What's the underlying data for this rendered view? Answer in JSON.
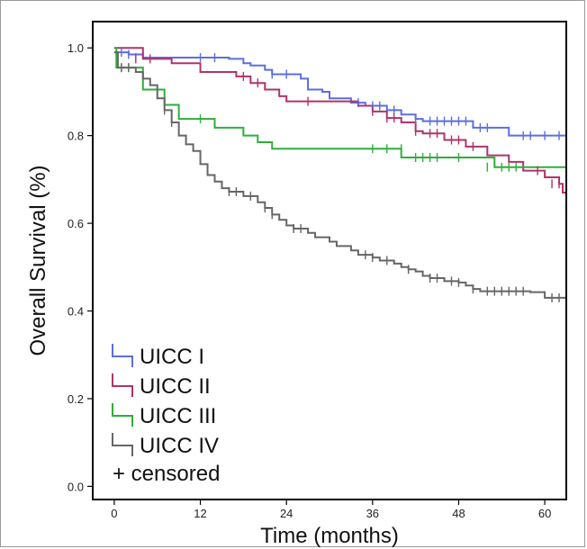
{
  "chart_data": {
    "type": "line",
    "subtype": "kaplan-meier",
    "title": "",
    "xlabel": "Time (months)",
    "ylabel": "Overall Survival (%)",
    "xlim": [
      -3,
      63
    ],
    "ylim": [
      -0.03,
      1.06
    ],
    "xticks": [
      0,
      12,
      24,
      36,
      48,
      60
    ],
    "yticks": [
      0.0,
      0.2,
      0.4,
      0.6,
      0.8,
      1.0
    ],
    "xtick_labels": [
      "0",
      "12",
      "24",
      "36",
      "48",
      "60"
    ],
    "ytick_labels": [
      "0.0",
      "0.2",
      "0.4",
      "0.6",
      "0.8",
      "1.0"
    ],
    "grid": false,
    "legend_position": "bottom-left",
    "censored_label": "+ censored",
    "series": [
      {
        "name": "UICC I",
        "color": "#5b6ee1",
        "steps": [
          [
            0,
            0.99
          ],
          [
            2,
            0.985
          ],
          [
            4,
            0.978
          ],
          [
            13,
            0.978
          ],
          [
            16,
            0.975
          ],
          [
            18,
            0.965
          ],
          [
            19,
            0.96
          ],
          [
            21,
            0.95
          ],
          [
            22,
            0.94
          ],
          [
            26,
            0.93
          ],
          [
            27,
            0.905
          ],
          [
            29,
            0.9
          ],
          [
            30,
            0.885
          ],
          [
            33,
            0.875
          ],
          [
            35,
            0.868
          ],
          [
            38,
            0.858
          ],
          [
            40,
            0.848
          ],
          [
            42,
            0.838
          ],
          [
            43,
            0.833
          ],
          [
            50,
            0.818
          ],
          [
            55,
            0.8
          ],
          [
            63,
            0.8
          ]
        ],
        "censored": [
          [
            1,
            0.99
          ],
          [
            2,
            0.985
          ],
          [
            3,
            0.978
          ],
          [
            12,
            0.978
          ],
          [
            14,
            0.978
          ],
          [
            22,
            0.94
          ],
          [
            24,
            0.94
          ],
          [
            34,
            0.875
          ],
          [
            36,
            0.868
          ],
          [
            37,
            0.868
          ],
          [
            39,
            0.858
          ],
          [
            42,
            0.838
          ],
          [
            44,
            0.833
          ],
          [
            45,
            0.833
          ],
          [
            46,
            0.833
          ],
          [
            47,
            0.833
          ],
          [
            48,
            0.833
          ],
          [
            49,
            0.833
          ],
          [
            51,
            0.818
          ],
          [
            52,
            0.818
          ],
          [
            57,
            0.8
          ],
          [
            58,
            0.8
          ],
          [
            60,
            0.8
          ],
          [
            62,
            0.8
          ]
        ]
      },
      {
        "name": "UICC II",
        "color": "#b0336b",
        "steps": [
          [
            0,
            1.0
          ],
          [
            4,
            0.975
          ],
          [
            6,
            0.975
          ],
          [
            8,
            0.965
          ],
          [
            12,
            0.945
          ],
          [
            17,
            0.935
          ],
          [
            19,
            0.92
          ],
          [
            21,
            0.905
          ],
          [
            23,
            0.89
          ],
          [
            24,
            0.878
          ],
          [
            34,
            0.868
          ],
          [
            36,
            0.855
          ],
          [
            38,
            0.84
          ],
          [
            40,
            0.83
          ],
          [
            42,
            0.81
          ],
          [
            43,
            0.805
          ],
          [
            46,
            0.79
          ],
          [
            49,
            0.775
          ],
          [
            52,
            0.755
          ],
          [
            55,
            0.74
          ],
          [
            57,
            0.72
          ],
          [
            60,
            0.705
          ],
          [
            62,
            0.69
          ],
          [
            62.5,
            0.67
          ],
          [
            63,
            0.66
          ]
        ],
        "censored": [
          [
            3,
            0.975
          ],
          [
            5,
            0.975
          ],
          [
            18,
            0.935
          ],
          [
            20,
            0.92
          ],
          [
            27,
            0.878
          ],
          [
            36,
            0.855
          ],
          [
            38,
            0.84
          ],
          [
            39,
            0.84
          ],
          [
            42,
            0.81
          ],
          [
            44,
            0.805
          ],
          [
            45,
            0.805
          ],
          [
            47,
            0.79
          ],
          [
            48,
            0.79
          ],
          [
            50,
            0.775
          ],
          [
            59,
            0.72
          ],
          [
            61,
            0.69
          ],
          [
            62,
            0.69
          ]
        ]
      },
      {
        "name": "UICC III",
        "color": "#2eaf3a",
        "steps": [
          [
            0,
            1.0
          ],
          [
            0.3,
            0.955
          ],
          [
            4,
            0.905
          ],
          [
            7,
            0.87
          ],
          [
            9,
            0.838
          ],
          [
            14,
            0.818
          ],
          [
            18,
            0.8
          ],
          [
            20,
            0.785
          ],
          [
            22,
            0.77
          ],
          [
            40,
            0.75
          ],
          [
            53,
            0.728
          ],
          [
            63,
            0.728
          ]
        ],
        "censored": [
          [
            1,
            0.955
          ],
          [
            2,
            0.955
          ],
          [
            12,
            0.838
          ],
          [
            36,
            0.77
          ],
          [
            38,
            0.77
          ],
          [
            40,
            0.77
          ],
          [
            42,
            0.75
          ],
          [
            43,
            0.75
          ],
          [
            44,
            0.75
          ],
          [
            45,
            0.75
          ],
          [
            48,
            0.75
          ],
          [
            52,
            0.728
          ],
          [
            54,
            0.728
          ],
          [
            55,
            0.728
          ],
          [
            56,
            0.728
          ]
        ]
      },
      {
        "name": "UICC IV",
        "color": "#666666",
        "steps": [
          [
            0,
            0.99
          ],
          [
            0.5,
            0.955
          ],
          [
            3,
            0.945
          ],
          [
            4,
            0.93
          ],
          [
            5,
            0.915
          ],
          [
            6,
            0.885
          ],
          [
            7,
            0.858
          ],
          [
            8,
            0.83
          ],
          [
            9,
            0.8
          ],
          [
            10,
            0.78
          ],
          [
            11,
            0.765
          ],
          [
            12,
            0.735
          ],
          [
            13,
            0.71
          ],
          [
            14,
            0.695
          ],
          [
            15,
            0.68
          ],
          [
            16,
            0.672
          ],
          [
            18,
            0.662
          ],
          [
            20,
            0.648
          ],
          [
            21,
            0.635
          ],
          [
            22,
            0.62
          ],
          [
            23,
            0.608
          ],
          [
            24,
            0.595
          ],
          [
            25,
            0.588
          ],
          [
            27,
            0.578
          ],
          [
            28,
            0.568
          ],
          [
            30,
            0.558
          ],
          [
            31,
            0.548
          ],
          [
            33,
            0.538
          ],
          [
            34,
            0.528
          ],
          [
            36,
            0.522
          ],
          [
            37,
            0.515
          ],
          [
            39,
            0.508
          ],
          [
            40,
            0.5
          ],
          [
            41,
            0.495
          ],
          [
            42,
            0.49
          ],
          [
            43,
            0.48
          ],
          [
            44,
            0.475
          ],
          [
            46,
            0.468
          ],
          [
            48,
            0.465
          ],
          [
            49,
            0.458
          ],
          [
            50,
            0.45
          ],
          [
            51,
            0.445
          ],
          [
            58,
            0.443
          ],
          [
            60,
            0.43
          ],
          [
            63,
            0.43
          ]
        ],
        "censored": [
          [
            1,
            0.955
          ],
          [
            2,
            0.955
          ],
          [
            7,
            0.858
          ],
          [
            8,
            0.83
          ],
          [
            16,
            0.672
          ],
          [
            17,
            0.672
          ],
          [
            19,
            0.662
          ],
          [
            21,
            0.635
          ],
          [
            22,
            0.62
          ],
          [
            25,
            0.588
          ],
          [
            26,
            0.588
          ],
          [
            35,
            0.528
          ],
          [
            36,
            0.522
          ],
          [
            38,
            0.515
          ],
          [
            41,
            0.495
          ],
          [
            44,
            0.475
          ],
          [
            45,
            0.475
          ],
          [
            47,
            0.468
          ],
          [
            48,
            0.465
          ],
          [
            50,
            0.45
          ],
          [
            52,
            0.445
          ],
          [
            53,
            0.445
          ],
          [
            54,
            0.445
          ],
          [
            55,
            0.445
          ],
          [
            56,
            0.445
          ],
          [
            57,
            0.445
          ],
          [
            61,
            0.43
          ],
          [
            62,
            0.43
          ]
        ]
      }
    ]
  }
}
